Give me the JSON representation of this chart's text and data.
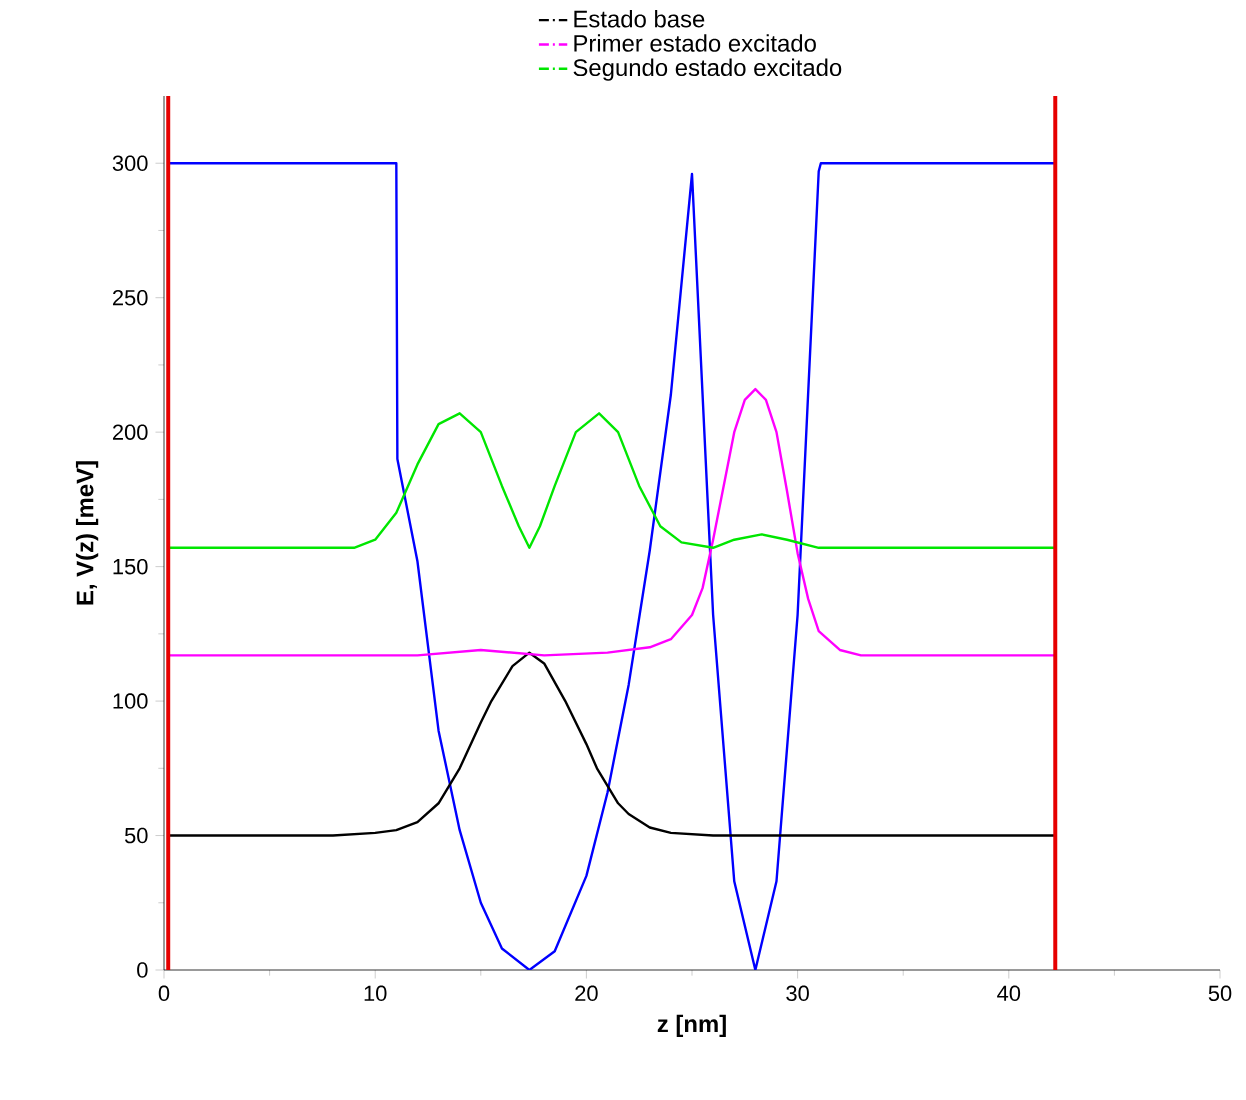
{
  "chart_data": {
    "type": "line",
    "xlabel": "z [nm]",
    "ylabel": "E, V(z) [meV]",
    "xlim": [
      0,
      50
    ],
    "ylim": [
      0,
      325
    ],
    "xticks": [
      0,
      10,
      20,
      30,
      40,
      50
    ],
    "yticks": [
      0,
      50,
      100,
      150,
      200,
      250,
      300
    ],
    "grid": false,
    "legend": "top",
    "line_style": "solid",
    "marker": "none",
    "series": [
      {
        "name": "Estado base",
        "color": "#000000",
        "x": [
          0.2,
          8,
          10,
          11,
          12,
          13,
          14,
          15,
          15.5,
          16.5,
          17.3,
          18,
          19,
          20,
          20.5,
          21.5,
          22,
          23,
          24,
          26,
          42.2
        ],
        "values": [
          50,
          50,
          51,
          52,
          55,
          62,
          75,
          92,
          100,
          113,
          118,
          114,
          100,
          84,
          75,
          62,
          58,
          53,
          51,
          50,
          50
        ]
      },
      {
        "name": "Primer estado excitado",
        "color": "#ff00ff",
        "x": [
          0.2,
          12,
          15,
          18,
          21,
          23,
          24,
          25,
          25.5,
          26,
          26.5,
          27,
          27.5,
          28,
          28.5,
          29,
          29.5,
          30,
          30.5,
          31,
          32,
          33,
          42.2
        ],
        "values": [
          117,
          117,
          119,
          117,
          118,
          120,
          123,
          132,
          142,
          160,
          180,
          200,
          212,
          216,
          212,
          200,
          178,
          155,
          138,
          126,
          119,
          117,
          117
        ]
      },
      {
        "name": "Segundo estado excitado",
        "color": "#00e600",
        "x": [
          0.2,
          9,
          10,
          11,
          12,
          13,
          14,
          15,
          16,
          16.8,
          17.3,
          17.8,
          18.5,
          19.5,
          20.6,
          21.5,
          22.5,
          23.5,
          24.5,
          26,
          27,
          28.3,
          29.5,
          31,
          42.2
        ],
        "values": [
          157,
          157,
          160,
          170,
          188,
          203,
          207,
          200,
          180,
          165,
          157,
          165,
          180,
          200,
          207,
          200,
          180,
          165,
          159,
          157,
          160,
          162,
          160,
          157,
          157
        ]
      },
      {
        "color": "#0000ff",
        "x": [
          0.2,
          11,
          11.05,
          12,
          13,
          14,
          15,
          16,
          17.3,
          18.5,
          20,
          21,
          22,
          23,
          24,
          25,
          26,
          27,
          28,
          29,
          30,
          31,
          31.1,
          42.2
        ],
        "values": [
          300,
          300,
          190,
          152,
          89,
          52,
          25,
          8,
          0,
          7,
          35,
          66,
          106,
          156,
          214,
          296,
          132,
          33,
          0,
          33,
          132,
          297,
          300,
          300
        ]
      }
    ],
    "ref_lines": [
      {
        "axis": "x",
        "value": 0.2,
        "color": "#e60000"
      },
      {
        "axis": "x",
        "value": 42.2,
        "color": "#e60000"
      }
    ]
  }
}
